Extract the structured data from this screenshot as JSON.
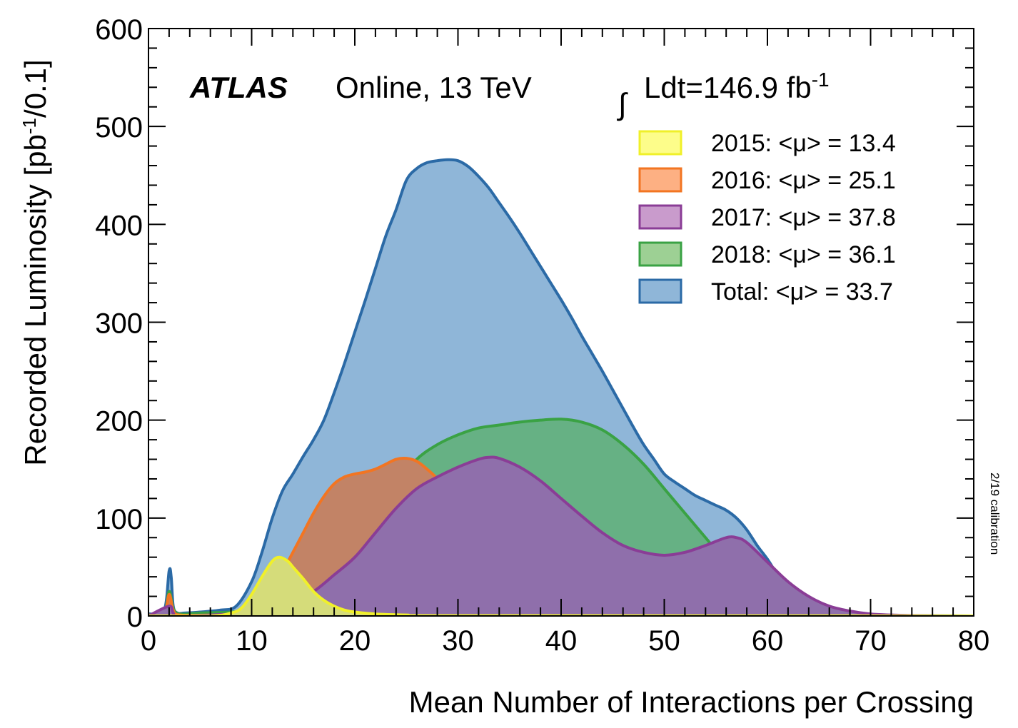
{
  "chart_data": {
    "type": "area",
    "experiment": "ATLAS",
    "subtitle": "Online, 13 TeV",
    "lumi_label": "Ldt=146.9 fb",
    "lumi_exponent": "-1",
    "side_note": "2/19 calibration",
    "xlabel": "Mean Number of Interactions per Crossing",
    "ylabel_main": "Recorded Luminosity [pb",
    "ylabel_exponent": "-1",
    "ylabel_tail": "/0.1]",
    "xlim": [
      0,
      80
    ],
    "ylim": [
      0,
      600
    ],
    "x_ticks": [
      "0",
      "10",
      "20",
      "30",
      "40",
      "50",
      "60",
      "70",
      "80"
    ],
    "y_ticks": [
      "0",
      "100",
      "200",
      "300",
      "400",
      "500",
      "600"
    ],
    "x_tick_values": [
      0,
      10,
      20,
      30,
      40,
      50,
      60,
      70,
      80
    ],
    "y_tick_values": [
      0,
      100,
      200,
      300,
      400,
      500,
      600
    ],
    "legend_position": "top-right",
    "series": [
      {
        "name": "Total",
        "legend": "Total: <μ> = 33.7",
        "line_color": "#2b6aa6",
        "fill_color": "#8fb6d8",
        "x": [
          0,
          1.5,
          2.0,
          2.2,
          2.4,
          2.8,
          3.5,
          5,
          7,
          8.5,
          10,
          11,
          12,
          13,
          14,
          15,
          16,
          17,
          18,
          19,
          20,
          21,
          22,
          23,
          24,
          25,
          26,
          27,
          28,
          29,
          30,
          31,
          32,
          33,
          34,
          35,
          36,
          37,
          38,
          39,
          40,
          41,
          42,
          43,
          44,
          45,
          46,
          47,
          48,
          49,
          50,
          51,
          52,
          53,
          54,
          55,
          56,
          57,
          58,
          59,
          60,
          61,
          62,
          63,
          64,
          65,
          66,
          67,
          68,
          70,
          72,
          75,
          80
        ],
        "y": [
          2,
          5,
          46,
          40,
          10,
          3,
          3,
          4,
          6,
          10,
          35,
          65,
          100,
          128,
          145,
          163,
          180,
          200,
          228,
          258,
          290,
          322,
          355,
          388,
          415,
          445,
          457,
          463,
          465,
          466,
          465,
          459,
          449,
          437,
          422,
          407,
          391,
          374,
          357,
          340,
          323,
          305,
          286,
          268,
          250,
          231,
          212,
          193,
          175,
          160,
          145,
          137,
          130,
          123,
          118,
          113,
          108,
          100,
          88,
          72,
          58,
          42,
          32,
          22,
          15,
          10,
          6,
          4,
          2,
          1,
          0.5,
          0.2,
          0
        ]
      },
      {
        "name": "2018",
        "legend": "2018: <μ> = 36.1",
        "line_color": "#3aa244",
        "fill_color": "#66b184",
        "x": [
          0,
          1.5,
          2.0,
          2.4,
          3,
          5,
          8,
          10,
          12,
          14,
          16,
          18,
          20,
          22,
          24,
          26,
          28,
          30,
          32,
          34,
          36,
          38,
          40,
          42,
          44,
          46,
          48,
          50,
          52,
          54,
          56,
          58,
          60,
          62,
          64,
          66,
          68,
          70,
          72,
          75,
          80
        ],
        "y": [
          1,
          3,
          25,
          8,
          2,
          3,
          4,
          6,
          12,
          20,
          32,
          50,
          75,
          105,
          135,
          160,
          175,
          185,
          192,
          195,
          198,
          200,
          201,
          198,
          190,
          175,
          155,
          130,
          105,
          80,
          55,
          35,
          20,
          10,
          5,
          2,
          1,
          0.5,
          0.2,
          0.1,
          0
        ]
      },
      {
        "name": "2016",
        "legend": "2016: <μ> = 25.1",
        "line_color": "#f27522",
        "fill_color": "#c28366",
        "x": [
          0,
          1.5,
          2.0,
          2.4,
          3,
          6,
          9,
          10,
          11,
          12,
          13,
          14,
          15,
          16,
          17,
          18,
          19,
          20,
          21,
          22,
          23,
          24,
          25,
          26,
          27,
          28,
          29,
          30,
          31,
          32,
          33,
          34,
          35,
          36,
          37,
          38,
          39,
          40,
          41,
          42,
          44,
          46,
          48,
          50,
          55,
          60,
          80
        ],
        "y": [
          1,
          2,
          22,
          6,
          1,
          1,
          2,
          5,
          12,
          25,
          45,
          65,
          85,
          105,
          122,
          135,
          142,
          145,
          147,
          150,
          155,
          160,
          161,
          158,
          150,
          140,
          125,
          108,
          92,
          78,
          65,
          53,
          42,
          33,
          25,
          18,
          12,
          8,
          5,
          3,
          1.5,
          0.7,
          0.3,
          0.1,
          0,
          0,
          0
        ]
      },
      {
        "name": "2017",
        "legend": "2017: <μ> = 37.8",
        "line_color": "#8a3d96",
        "fill_color": "#8f6fab",
        "x": [
          0,
          2.0,
          2.4,
          3,
          8,
          10,
          12,
          14,
          16,
          18,
          20,
          22,
          24,
          26,
          28,
          30,
          32,
          33,
          34,
          36,
          38,
          40,
          42,
          44,
          46,
          48,
          50,
          52,
          54,
          56,
          57,
          58,
          60,
          62,
          64,
          66,
          68,
          70,
          72,
          75,
          80
        ],
        "y": [
          0,
          10,
          3,
          0,
          2,
          4,
          8,
          15,
          25,
          42,
          60,
          85,
          110,
          130,
          142,
          152,
          160,
          162,
          161,
          152,
          138,
          120,
          102,
          85,
          72,
          65,
          62,
          65,
          72,
          80,
          80,
          75,
          55,
          35,
          20,
          10,
          5,
          2,
          1,
          0.3,
          0
        ]
      },
      {
        "name": "2015",
        "legend": "2015: <μ> = 13.4",
        "line_color": "#f0f02a",
        "fill_color": "#d5dc7a",
        "x": [
          0,
          6,
          8,
          9,
          10,
          11,
          12,
          12.7,
          13.5,
          14,
          15,
          16,
          17,
          18,
          19,
          20,
          22,
          25,
          30,
          80
        ],
        "y": [
          0,
          0,
          3,
          8,
          22,
          40,
          56,
          60,
          56,
          50,
          38,
          25,
          16,
          10,
          6,
          4,
          2,
          1,
          0.3,
          0
        ]
      }
    ],
    "legend_order": [
      "2015",
      "2016",
      "2017",
      "2018",
      "Total"
    ],
    "legend_colors": [
      {
        "fill": "#fdfd8a",
        "stroke": "#f0f02a"
      },
      {
        "fill": "#fdb083",
        "stroke": "#f27522"
      },
      {
        "fill": "#c99bcc",
        "stroke": "#8a3d96"
      },
      {
        "fill": "#9dd094",
        "stroke": "#3aa244"
      },
      {
        "fill": "#8fb6d8",
        "stroke": "#2b6aa6"
      }
    ]
  }
}
